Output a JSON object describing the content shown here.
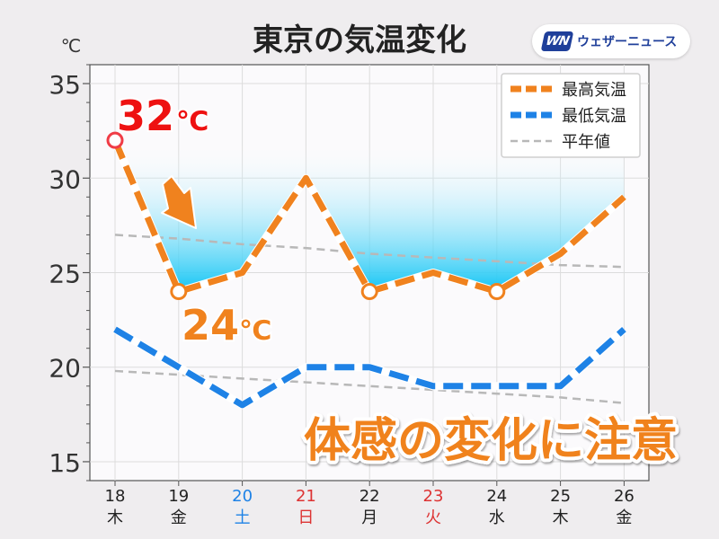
{
  "unit_label": "℃",
  "brand": {
    "mark": "WN",
    "name": "ウェザーニュース"
  },
  "headline": "体感の変化に注意",
  "colors": {
    "high": "#f0821e",
    "low": "#1e82e6",
    "normal": "#b8b8b8",
    "max_label": "#ee1111",
    "saturday": "#1e82e6",
    "sunday_holiday": "#dd3333",
    "weekday": "#222222"
  },
  "chart_data": {
    "type": "line",
    "title": "東京の気温変化",
    "categories": [
      "18",
      "19",
      "20",
      "21",
      "22",
      "23",
      "24",
      "25",
      "26"
    ],
    "weekdays": [
      "木",
      "金",
      "土",
      "日",
      "月",
      "火",
      "水",
      "木",
      "金"
    ],
    "day_types": [
      "weekday",
      "weekday",
      "saturday",
      "sunday",
      "weekday",
      "holiday",
      "weekday",
      "weekday",
      "weekday"
    ],
    "ylim": [
      14,
      36
    ],
    "yticks": [
      15,
      20,
      25,
      30,
      35
    ],
    "grid": true,
    "legend_position": "top-right",
    "series": [
      {
        "name": "最高気温",
        "values": [
          32,
          24,
          25,
          30,
          24,
          25,
          24,
          26,
          29
        ]
      },
      {
        "name": "最低気温",
        "values": [
          22,
          20,
          18,
          20,
          20,
          19,
          19,
          19,
          22
        ]
      },
      {
        "name": "平年値",
        "values": [
          27.0,
          26.8,
          26.5,
          26.3,
          26.0,
          25.8,
          25.6,
          25.4,
          25.3
        ]
      },
      {
        "name": "平年値",
        "values": [
          19.8,
          19.6,
          19.4,
          19.2,
          19.0,
          18.8,
          18.6,
          18.4,
          18.1
        ]
      }
    ],
    "annotations": [
      {
        "text": "32",
        "unit": "℃",
        "day": "18"
      },
      {
        "text": "24",
        "unit": "℃",
        "day": "19"
      }
    ]
  }
}
